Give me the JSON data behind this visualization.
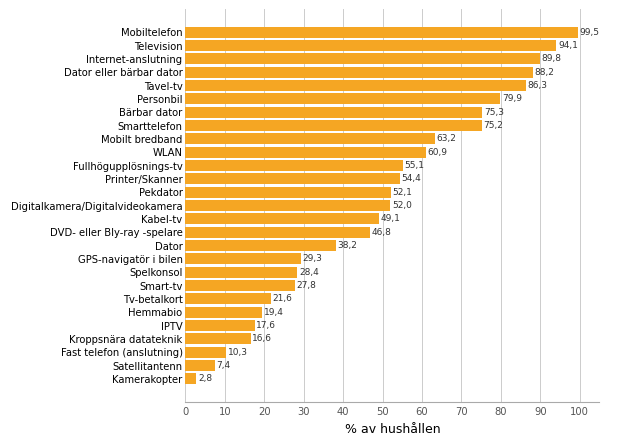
{
  "categories": [
    "Kamerakopter",
    "Satellitantenn",
    "Fast telefon (anslutning)",
    "Kroppsnära datateknik",
    "IPTV",
    "Hemmabio",
    "Tv-betalkort",
    "Smart-tv",
    "Spelkonsol",
    "GPS-navigatör i bilen",
    "Dator",
    "DVD- eller Bly-ray -spelare",
    "Kabel-tv",
    "Digitalkamera/Digitalvideokamera",
    "Pekdator",
    "Printer/Skanner",
    "Fullhögupplösnings-tv",
    "WLAN",
    "Mobilt bredband",
    "Smarttelefon",
    "Bärbar dator",
    "Personbil",
    "Tavel-tv",
    "Dator eller bärbar dator",
    "Internet-anslutning",
    "Television",
    "Mobiltelefon"
  ],
  "values": [
    2.8,
    7.4,
    10.3,
    16.6,
    17.6,
    19.4,
    21.6,
    27.8,
    28.4,
    29.3,
    38.2,
    46.8,
    49.1,
    52.0,
    52.1,
    54.4,
    55.1,
    60.9,
    63.2,
    75.2,
    75.3,
    79.9,
    86.3,
    88.2,
    89.8,
    94.1,
    99.5
  ],
  "bar_color": "#F5A623",
  "value_labels": [
    "2,8",
    "7,4",
    "10,3",
    "16,6",
    "17,6",
    "19,4",
    "21,6",
    "27,8",
    "28,4",
    "29,3",
    "38,2",
    "46,8",
    "49,1",
    "52,0",
    "52,1",
    "54,4",
    "55,1",
    "60,9",
    "63,2",
    "75,2",
    "75,3",
    "79,9",
    "86,3",
    "88,2",
    "89,8",
    "94,1",
    "99,5"
  ],
  "xlabel": "% av hushållen",
  "xlim": [
    0,
    105
  ],
  "xticks": [
    0,
    10,
    20,
    30,
    40,
    50,
    60,
    70,
    80,
    90,
    100
  ],
  "bar_height": 0.82,
  "background_color": "#ffffff",
  "grid_color": "#cccccc",
  "label_fontsize": 7.2,
  "value_fontsize": 6.5,
  "xlabel_fontsize": 9
}
